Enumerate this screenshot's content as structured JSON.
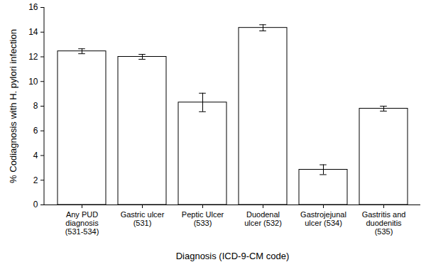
{
  "chart_data": {
    "type": "bar",
    "x_label": "Diagnosis (ICD-9-CM code)",
    "y_label": "% Codiagnosis with H. pylori infection",
    "categories": [
      "Any PUD diagnosis (531-534)",
      "Gastric ulcer (531)",
      "Peptic Ulcer (533)",
      "Duodenal ulcer (532)",
      "Gastrojejunal ulcer (534)",
      "Gastritis and duodenitis (535)"
    ],
    "values": [
      12.45,
      12.0,
      8.3,
      14.35,
      2.85,
      7.8
    ],
    "errors": [
      0.2,
      0.2,
      0.75,
      0.25,
      0.4,
      0.2
    ],
    "color": "#ffffff",
    "ylim": [
      0,
      16
    ],
    "yticks": [
      0,
      2,
      4,
      6,
      8,
      10,
      12,
      14,
      16
    ],
    "grid": false
  }
}
